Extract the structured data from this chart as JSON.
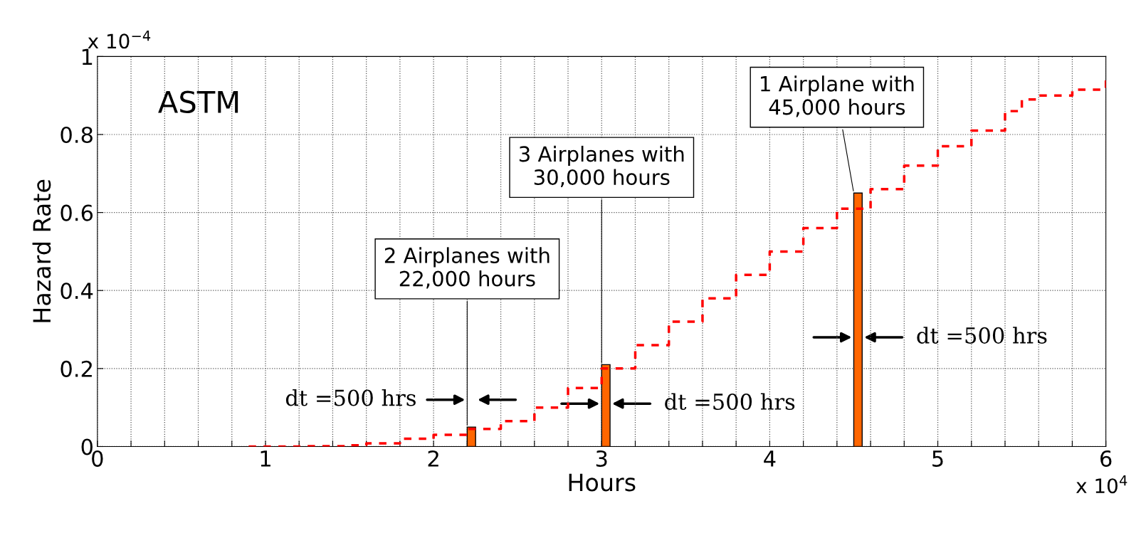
{
  "chart_data": {
    "type": "step",
    "xlabel": "Hours",
    "ylabel": "Hazard Rate",
    "xlim": [
      0,
      6
    ],
    "ylim": [
      0,
      1
    ],
    "xticks": [
      0,
      {
        "value": 0.2,
        "label": null
      },
      {
        "value": 0.4,
        "label": null
      },
      {
        "value": 0.6,
        "label": null
      },
      {
        "value": 0.8,
        "label": null
      },
      1,
      {
        "value": 1.2,
        "label": null
      },
      {
        "value": 1.4,
        "label": null
      },
      {
        "value": 1.6,
        "label": null
      },
      {
        "value": 1.8,
        "label": null
      },
      2,
      {
        "value": 2.2,
        "label": null
      },
      {
        "value": 2.4,
        "label": null
      },
      {
        "value": 2.6,
        "label": null
      },
      {
        "value": 2.8,
        "label": null
      },
      3,
      {
        "value": 3.2,
        "label": null
      },
      {
        "value": 3.4,
        "label": null
      },
      {
        "value": 3.6,
        "label": null
      },
      {
        "value": 3.8,
        "label": null
      },
      4,
      {
        "value": 4.2,
        "label": null
      },
      {
        "value": 4.4,
        "label": null
      },
      {
        "value": 4.6,
        "label": null
      },
      {
        "value": 4.8,
        "label": null
      },
      5,
      {
        "value": 5.2,
        "label": null
      },
      {
        "value": 5.4,
        "label": null
      },
      {
        "value": 5.6,
        "label": null
      },
      {
        "value": 5.8,
        "label": null
      },
      6
    ],
    "yticks": [
      0,
      0.2,
      0.4,
      0.6,
      0.8,
      1
    ],
    "grid": true,
    "line_style": "dashed",
    "series": [
      {
        "color": "#ff0000",
        "x": [
          0.9,
          1.2,
          1.5,
          1.6,
          1.8,
          2.0,
          2.2,
          2.4,
          2.6,
          2.8,
          3.0,
          3.2,
          3.4,
          3.6,
          3.8,
          4.0,
          4.2,
          4.4,
          4.6,
          4.8,
          5.0,
          5.2,
          5.4,
          5.5,
          5.6,
          5.8,
          6.0
        ],
        "values": [
          0,
          0.001,
          0.003,
          0.008,
          0.02,
          0.03,
          0.045,
          0.065,
          0.1,
          0.15,
          0.2,
          0.26,
          0.32,
          0.38,
          0.44,
          0.5,
          0.56,
          0.61,
          0.66,
          0.72,
          0.77,
          0.81,
          0.86,
          0.89,
          0.9,
          0.915,
          0.95
        ]
      },
      {
        "type": "bar",
        "color": "#ff6600",
        "x": [
          2.2,
          3.0,
          4.5
        ],
        "values": [
          0.05,
          0.21,
          0.65
        ]
      }
    ],
    "annotations": [
      "ASTM",
      "x 10$^{−4}$",
      "x 10$^{4}$",
      {
        "text": "2 Airplanes with\n22,000 hours",
        "x": 2.2,
        "y": 0.05
      },
      {
        "text": "3 Airplanes with\n30,000 hours",
        "x": 3.0,
        "y": 0.21
      },
      {
        "text": "1 Airplane with\n45,000 hours",
        "x": 4.5,
        "y": 0.65
      },
      "dt =500 hrs",
      "dt =500 hrs",
      "dt =500 hrs"
    ]
  }
}
